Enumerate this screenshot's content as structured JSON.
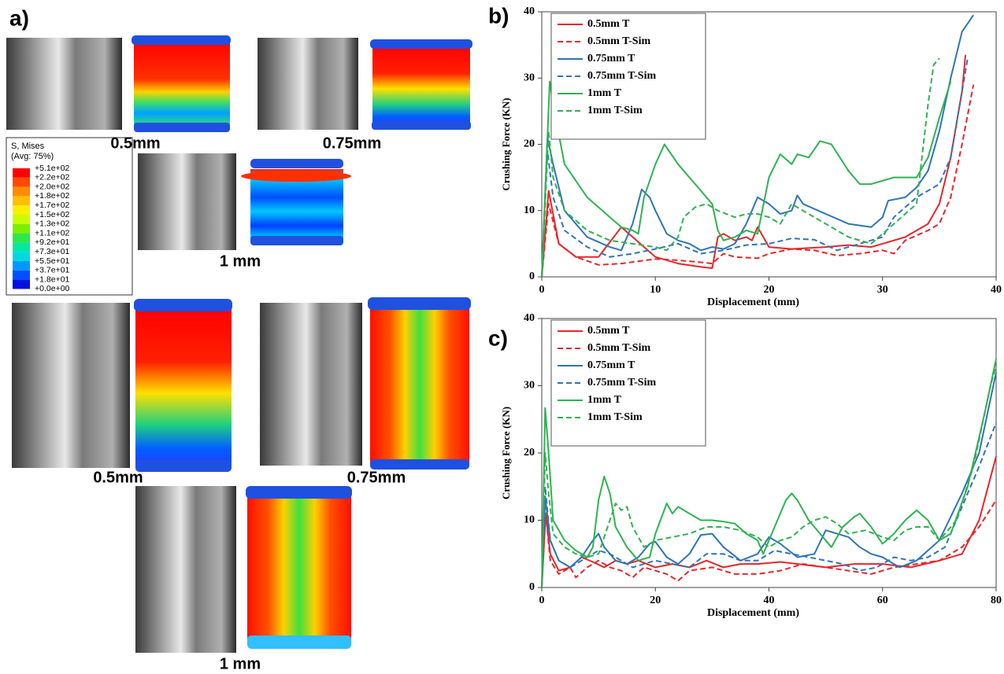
{
  "panel_a": {
    "label": "a)",
    "captions": [
      "0.5mm",
      "0.75mm",
      "1 mm",
      "0.5mm",
      "0.75mm",
      "1 mm"
    ],
    "contour_legend": {
      "title": "S, Mises",
      "subtitle": "(Avg: 75%)",
      "levels": [
        "+5.1e+02",
        "+2.2e+02",
        "+2.0e+02",
        "+1.8e+02",
        "+1.7e+02",
        "+1.5e+02",
        "+1.3e+02",
        "+1.1e+02",
        "+9.2e+01",
        "+7.3e+01",
        "+5.5e+01",
        "+3.7e+01",
        "+1.8e+01",
        "+0.0e+00"
      ],
      "colors": [
        "#ff0000",
        "#ff4a00",
        "#ff8c00",
        "#ffc000",
        "#ffee00",
        "#c8ff00",
        "#7cf000",
        "#2ee84a",
        "#00e8a0",
        "#00d8e0",
        "#0098ff",
        "#0050ff",
        "#0010e0"
      ]
    }
  },
  "chart_data": [
    {
      "type": "line",
      "label": "b)",
      "xlabel": "Displacement (mm)",
      "ylabel": "Crushing Force (KN)",
      "xlim": [
        0,
        40
      ],
      "ylim": [
        0,
        40
      ],
      "xticks": [
        0,
        10,
        20,
        30,
        40
      ],
      "yticks": [
        0,
        10,
        20,
        30,
        40
      ],
      "legend": "upper left",
      "series": [
        {
          "name": "0.5mm T",
          "color": "#e8262a",
          "dashed": false,
          "x": [
            0,
            0.6,
            1.5,
            3,
            5,
            7,
            8,
            10,
            12,
            14,
            15,
            15.5,
            16,
            17,
            18,
            18.5,
            19,
            19.5,
            20,
            22,
            25,
            27,
            29,
            30,
            32,
            34,
            35,
            36,
            37,
            37.3
          ],
          "values": [
            0,
            13,
            5,
            3,
            3,
            7.5,
            6,
            3,
            2,
            1.5,
            1.3,
            6,
            6.5,
            5.5,
            6,
            5.5,
            7.5,
            6,
            4.5,
            4.2,
            4.5,
            4.8,
            4.5,
            5,
            6,
            8,
            11,
            18,
            28,
            33.5
          ]
        },
        {
          "name": "0.5mm T-Sim",
          "color": "#e8262a",
          "dashed": true,
          "x": [
            0,
            0.6,
            1.5,
            3,
            5,
            7,
            10,
            12,
            14,
            15,
            16,
            17,
            19,
            20,
            22,
            24,
            26,
            28,
            30,
            31,
            32,
            34,
            35,
            36,
            37,
            38
          ],
          "values": [
            0,
            11,
            5,
            3,
            1.8,
            2,
            2.7,
            2.5,
            2.2,
            2,
            3.5,
            3,
            2.8,
            3.5,
            4.2,
            4,
            3.2,
            3.5,
            4,
            3.5,
            5.5,
            7,
            8,
            12,
            20,
            29
          ]
        },
        {
          "name": "0.75mm T",
          "color": "#2e75b6",
          "dashed": false,
          "x": [
            0,
            0.5,
            1,
            2,
            4,
            6,
            7,
            8,
            8.8,
            9.5,
            10,
            11,
            12,
            13,
            14,
            15,
            16,
            17,
            18,
            19,
            20,
            21,
            22,
            22.5,
            23,
            25,
            27,
            29,
            30,
            30.5,
            32,
            33,
            34,
            35,
            36,
            37,
            38
          ],
          "values": [
            0,
            21,
            17,
            10,
            6,
            4.5,
            4,
            8,
            13.2,
            12,
            10,
            6.5,
            5.5,
            5,
            4,
            4.5,
            4.2,
            5,
            8,
            12,
            11,
            9.5,
            10,
            12.3,
            11,
            9.5,
            8,
            7.5,
            9,
            11.5,
            12,
            13.5,
            16,
            22,
            30,
            37,
            39.5
          ]
        },
        {
          "name": "0.75mm T-Sim",
          "color": "#2e75b6",
          "dashed": true,
          "x": [
            0,
            0.5,
            1,
            2,
            4,
            6,
            8,
            10,
            12,
            14,
            16,
            18,
            20,
            22,
            24,
            26,
            28,
            30,
            31,
            33,
            35,
            36,
            37,
            37.5
          ],
          "values": [
            0,
            19,
            12,
            7,
            4.5,
            3,
            3.5,
            4.2,
            5,
            3.5,
            4,
            4.8,
            5,
            5.8,
            5.6,
            4,
            5,
            6,
            9,
            12,
            14,
            18,
            28,
            33
          ]
        },
        {
          "name": "1mm T",
          "color": "#2eb351",
          "dashed": false,
          "x": [
            0,
            0.7,
            1,
            2,
            4,
            6,
            7,
            8,
            8.5,
            9,
            10,
            10.8,
            12,
            14,
            15,
            15.5,
            16,
            17,
            18,
            19,
            20,
            21,
            22,
            22.5,
            23.5,
            24.5,
            25.5,
            27,
            28,
            29,
            30,
            31,
            32,
            33,
            34,
            35,
            36
          ],
          "values": [
            0,
            29.5,
            26,
            17,
            12,
            9,
            7.5,
            7,
            6.5,
            12,
            17,
            20,
            17,
            13,
            11,
            7,
            5.5,
            6,
            7,
            6.5,
            15,
            18.5,
            17,
            18.5,
            18,
            20.5,
            20,
            16,
            14,
            14,
            14.5,
            15,
            15,
            15,
            18,
            24,
            29.5
          ]
        },
        {
          "name": "1mm T-Sim",
          "color": "#2eb351",
          "dashed": true,
          "x": [
            0,
            0.6,
            1,
            2,
            4,
            6,
            8,
            10,
            11,
            12,
            12.5,
            13.5,
            14.5,
            15.5,
            17,
            18,
            19,
            20,
            21,
            22,
            23,
            25,
            27,
            29,
            31,
            33,
            34,
            34.5,
            35
          ],
          "values": [
            0,
            22,
            15,
            10,
            7,
            5.5,
            5,
            4.5,
            4,
            6,
            9,
            10.5,
            11,
            10,
            9,
            9.5,
            9.5,
            9,
            8,
            11,
            10,
            8,
            6,
            5,
            8,
            11,
            26,
            32,
            33
          ]
        }
      ]
    },
    {
      "type": "line",
      "label": "c)",
      "xlabel": "Displacement (mm)",
      "ylabel": "Crushing Force (KN)",
      "xlim": [
        0,
        80
      ],
      "ylim": [
        0,
        40
      ],
      "xticks": [
        0,
        20,
        40,
        60,
        80
      ],
      "yticks": [
        0,
        10,
        20,
        30,
        40
      ],
      "legend": "upper left",
      "series": [
        {
          "name": "0.5mm T",
          "color": "#e8262a",
          "dashed": false,
          "x": [
            0,
            0.7,
            1.5,
            3,
            5,
            7,
            9,
            11,
            13,
            15,
            17,
            20,
            23,
            26,
            29,
            32,
            35,
            38,
            42,
            45,
            50,
            55,
            60,
            65,
            70,
            74,
            77,
            80
          ],
          "values": [
            0,
            11,
            5,
            2.5,
            3,
            4.5,
            3.8,
            3,
            4,
            3.5,
            4,
            3,
            3.5,
            3,
            4,
            3,
            3.5,
            3.5,
            3.8,
            3.5,
            3,
            3.5,
            3.5,
            3,
            4,
            5,
            10,
            19.5
          ]
        },
        {
          "name": "0.5mm T-Sim",
          "color": "#e8262a",
          "dashed": true,
          "x": [
            0,
            0.6,
            1.5,
            3,
            5,
            6,
            8,
            10,
            12,
            14,
            16,
            18,
            20,
            22,
            24,
            26,
            30,
            34,
            38,
            42,
            46,
            50,
            54,
            58,
            62,
            66,
            70,
            74,
            77,
            80
          ],
          "values": [
            0,
            12,
            4,
            2,
            3,
            1.5,
            3,
            4,
            3,
            2.5,
            1.5,
            3,
            2.5,
            2,
            1,
            2.5,
            3,
            2,
            2,
            2.5,
            3.5,
            3,
            2.5,
            2,
            3,
            3.5,
            4,
            6,
            9,
            13
          ]
        },
        {
          "name": "0.75mm T",
          "color": "#2e75b6",
          "dashed": false,
          "x": [
            0,
            0.6,
            1.5,
            3,
            5,
            7,
            9,
            10,
            11,
            13,
            15,
            17,
            19,
            20,
            22,
            24,
            26,
            28,
            30,
            32,
            35,
            38,
            40,
            42,
            45,
            48,
            50,
            52,
            54,
            56,
            58,
            60,
            63,
            66,
            70,
            74,
            77,
            80
          ],
          "values": [
            0,
            13.5,
            7,
            4,
            3,
            4.5,
            7,
            8,
            6,
            4,
            3.5,
            4.5,
            6.5,
            6.8,
            4.5,
            3.5,
            5,
            7.8,
            8,
            6,
            4,
            5,
            7.5,
            6.5,
            4.5,
            5,
            8.5,
            8,
            7.5,
            6,
            5,
            4.5,
            3,
            4,
            7,
            14,
            20,
            32
          ]
        },
        {
          "name": "0.75mm T-Sim",
          "color": "#2e75b6",
          "dashed": true,
          "x": [
            0,
            0.6,
            1.5,
            3,
            5,
            8,
            10,
            12,
            14,
            16,
            18,
            20,
            23,
            26,
            29,
            32,
            35,
            38,
            41,
            44,
            47,
            50,
            53,
            56,
            59,
            62,
            65,
            68,
            71,
            74,
            77,
            80
          ],
          "values": [
            0,
            15,
            7,
            4,
            3,
            4.5,
            5.5,
            5,
            4,
            3,
            3.5,
            4,
            3.5,
            3,
            5,
            5,
            4,
            4,
            5.5,
            5,
            4.5,
            4,
            3.5,
            2.5,
            3,
            4.5,
            4,
            4.5,
            6,
            12,
            18,
            24.5
          ]
        },
        {
          "name": "1mm T",
          "color": "#2eb351",
          "dashed": false,
          "x": [
            0,
            0.6,
            1.2,
            2,
            4,
            6,
            8,
            9,
            10,
            11,
            12,
            13,
            15,
            17,
            19,
            20,
            22,
            23,
            24,
            26,
            28,
            30,
            32,
            34,
            36,
            38,
            39,
            41,
            43,
            44,
            45,
            47,
            49,
            51,
            53,
            55,
            56,
            58,
            60,
            62,
            64,
            66,
            68,
            70,
            72,
            75,
            78,
            80
          ],
          "values": [
            0,
            26.7,
            20,
            10,
            7,
            5.5,
            4.5,
            6,
            13,
            16.5,
            14,
            9,
            6,
            4,
            4.5,
            8,
            12.5,
            11,
            12,
            11,
            10,
            10,
            9.8,
            9.5,
            8,
            7,
            5,
            9,
            13,
            14,
            13,
            10,
            8,
            6,
            9,
            10.5,
            11,
            9,
            6.5,
            8,
            10,
            11.5,
            10,
            7,
            8,
            15,
            26,
            34
          ]
        },
        {
          "name": "1mm T-Sim",
          "color": "#2eb351",
          "dashed": true,
          "x": [
            0,
            0.6,
            1.2,
            2,
            4,
            6,
            8,
            10,
            12,
            13,
            14,
            15,
            16,
            18,
            20,
            23,
            26,
            29,
            32,
            35,
            38,
            40,
            42,
            44,
            46,
            48,
            50,
            52,
            54,
            57,
            60,
            62,
            64,
            66,
            68,
            70,
            73,
            76,
            79,
            80
          ],
          "values": [
            0,
            20,
            14,
            8,
            6,
            5,
            4.5,
            5,
            10,
            12.5,
            11.5,
            12,
            9,
            6,
            7,
            7.5,
            8,
            9,
            9,
            8.5,
            7.5,
            6,
            7,
            7.5,
            9,
            10,
            10.5,
            9.5,
            8,
            8.5,
            7.5,
            7,
            8.5,
            9,
            9,
            7,
            10,
            18,
            30,
            33
          ]
        }
      ]
    }
  ]
}
